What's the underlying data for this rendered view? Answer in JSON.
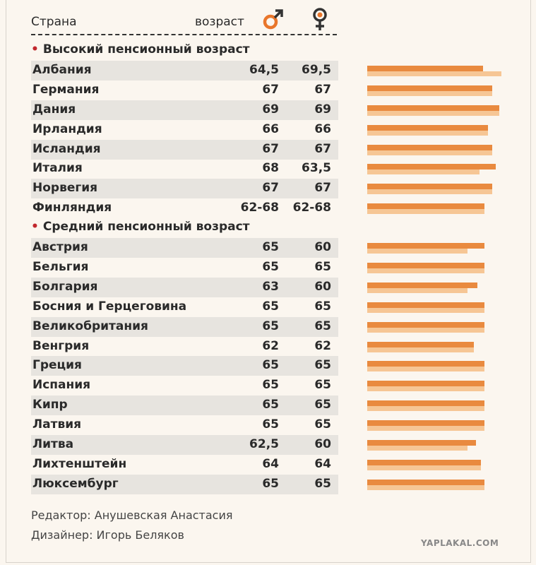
{
  "header": {
    "country_label": "Страна",
    "age_label": "возраст",
    "male_icon": "male-symbol-icon",
    "female_icon": "female-symbol-icon"
  },
  "colors": {
    "male_bar": "#e98a3f",
    "female_bar": "#f6c695",
    "accent_dot": "#c1272d",
    "male_symbol": "#e9762b"
  },
  "chart_data": {
    "type": "table",
    "sections": [
      {
        "title": "Высокий пенсионный возраст",
        "rows": [
          {
            "country": "Албания",
            "male": "64,5",
            "female": "69,5",
            "male_value": 64.5,
            "female_value": 69.5
          },
          {
            "country": "Германия",
            "male": "67",
            "female": "67",
            "male_value": 67,
            "female_value": 67
          },
          {
            "country": "Дания",
            "male": "69",
            "female": "69",
            "male_value": 69,
            "female_value": 69
          },
          {
            "country": "Ирландия",
            "male": "66",
            "female": "66",
            "male_value": 66,
            "female_value": 66
          },
          {
            "country": "Исландия",
            "male": "67",
            "female": "67",
            "male_value": 67,
            "female_value": 67
          },
          {
            "country": "Италия",
            "male": "68",
            "female": "63,5",
            "male_value": 68,
            "female_value": 63.5
          },
          {
            "country": "Норвегия",
            "male": "67",
            "female": "67",
            "male_value": 67,
            "female_value": 67
          },
          {
            "country": "Финляндия",
            "male": "62-68",
            "female": "62-68",
            "male_value": 65,
            "female_value": 65
          }
        ]
      },
      {
        "title": "Средний пенсионный возраст",
        "rows": [
          {
            "country": "Австрия",
            "male": "65",
            "female": "60",
            "male_value": 65,
            "female_value": 60
          },
          {
            "country": "Бельгия",
            "male": "65",
            "female": "65",
            "male_value": 65,
            "female_value": 65
          },
          {
            "country": "Болгария",
            "male": "63",
            "female": "60",
            "male_value": 63,
            "female_value": 60
          },
          {
            "country": "Босния и Герцеговина",
            "male": "65",
            "female": "65",
            "male_value": 65,
            "female_value": 65
          },
          {
            "country": "Великобритания",
            "male": "65",
            "female": "65",
            "male_value": 65,
            "female_value": 65
          },
          {
            "country": "Венгрия",
            "male": "62",
            "female": "62",
            "male_value": 62,
            "female_value": 62
          },
          {
            "country": "Греция",
            "male": "65",
            "female": "65",
            "male_value": 65,
            "female_value": 65
          },
          {
            "country": "Испания",
            "male": "65",
            "female": "65",
            "male_value": 65,
            "female_value": 65
          },
          {
            "country": "Кипр",
            "male": "65",
            "female": "65",
            "male_value": 65,
            "female_value": 65
          },
          {
            "country": "Латвия",
            "male": "65",
            "female": "65",
            "male_value": 65,
            "female_value": 65
          },
          {
            "country": "Литва",
            "male": "62,5",
            "female": "60",
            "male_value": 62.5,
            "female_value": 60
          },
          {
            "country": "Лихтенштейн",
            "male": "64",
            "female": "64",
            "male_value": 64,
            "female_value": 64
          },
          {
            "country": "Люксембург",
            "male": "65",
            "female": "65",
            "male_value": 65,
            "female_value": 65
          }
        ]
      }
    ]
  },
  "credits": {
    "editor": "Редактор: Анушевская Анастасия",
    "designer": "Дизайнер: Игорь Беляков"
  },
  "watermark": "YAPLAKAL.COM"
}
